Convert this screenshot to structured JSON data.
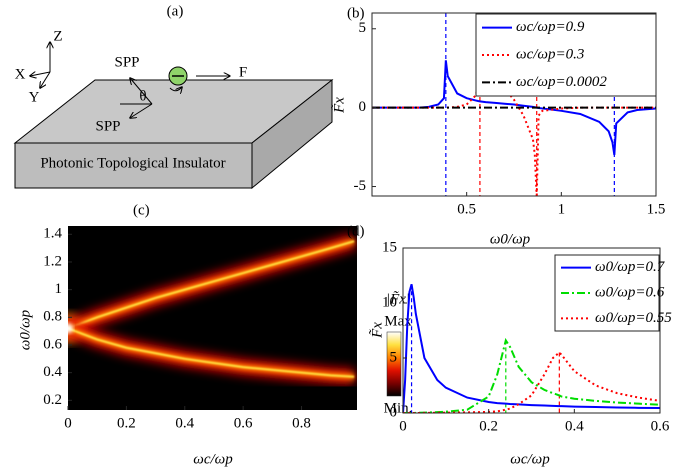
{
  "diagram": {
    "panel_label": "(a)",
    "axis_z": "Z",
    "axis_x": "X",
    "axis_y": "Y",
    "spp_upper": "SPP",
    "spp_lower": "SPP",
    "angle": "θ",
    "force": "F",
    "slab": "Photonic Topological Insulator"
  },
  "chart_data": [
    {
      "type": "line",
      "panel_label": "(b)",
      "xlabel": "ω0/ωp",
      "ylabel": "F̃x",
      "x": [
        0,
        0.2,
        0.25,
        0.3,
        0.35,
        0.38,
        0.39,
        0.4,
        0.45,
        0.5,
        0.55,
        0.56,
        0.57,
        0.6,
        0.65,
        0.7,
        0.75,
        0.8,
        0.85,
        0.86,
        0.87,
        0.88,
        0.9,
        1.0,
        1.1,
        1.2,
        1.25,
        1.27,
        1.28,
        1.29,
        1.35,
        1.4,
        1.5
      ],
      "series": [
        {
          "name": "ωc/ωp=0.9",
          "color": "#0000ff",
          "style": "solid",
          "values": [
            0,
            0,
            0,
            0.05,
            0.2,
            0.6,
            3.0,
            2.0,
            0.9,
            0.6,
            0.45,
            0.42,
            0.4,
            0.35,
            0.3,
            0.25,
            0.2,
            0.12,
            0.05,
            0.03,
            0,
            -0.02,
            -0.05,
            -0.2,
            -0.4,
            -0.9,
            -1.5,
            -2.2,
            -3.0,
            -1.0,
            -0.3,
            -0.15,
            -0.05
          ]
        },
        {
          "name": "ωc/ωp=0.3",
          "color": "#ff0000",
          "style": "dotted",
          "values": [
            0,
            0,
            0,
            0,
            0,
            0,
            0,
            0,
            0.05,
            0.2,
            0.8,
            2.0,
            5.5,
            3.5,
            2.0,
            1.2,
            0.5,
            -0.5,
            -2.0,
            -3.0,
            -5.7,
            -0.5,
            -0.2,
            -0.05,
            0,
            0,
            0,
            0,
            0,
            0,
            0,
            0,
            0
          ]
        },
        {
          "name": "ωc/ωp=0.0002",
          "color": "#000000",
          "style": "dashdot",
          "values": [
            0,
            0,
            0,
            0,
            0,
            0,
            0,
            0,
            0,
            0,
            0,
            0,
            0,
            0,
            0,
            0,
            0,
            0,
            0,
            0,
            0,
            0,
            0,
            0,
            0,
            0,
            0,
            0,
            0,
            0,
            0,
            0,
            0
          ]
        }
      ],
      "markers": [
        {
          "x": 0.39,
          "color": "#0000ff"
        },
        {
          "x": 1.28,
          "color": "#0000ff"
        },
        {
          "x": 0.57,
          "color": "#ff0000"
        },
        {
          "x": 0.87,
          "color": "#ff0000"
        }
      ],
      "xlim": [
        0,
        1.5
      ],
      "xticks": [
        0.5,
        1,
        1.5
      ],
      "ylim": [
        -5.6,
        6
      ],
      "yticks": [
        -5,
        0,
        5
      ],
      "grid": false,
      "legend": "upper right"
    },
    {
      "type": "heatmap",
      "panel_label": "(c)",
      "xlabel": "ωc/ωp",
      "ylabel": "ω0/ωp",
      "colorbar_label": "|F̃x|",
      "colorbar_max": "Max",
      "colorbar_min": "Min.",
      "colormap": [
        "#000000",
        "#7a0000",
        "#e01000",
        "#ff8000",
        "#ffe040",
        "#ffffff"
      ],
      "x": [
        0,
        0.05,
        0.1,
        0.2,
        0.3,
        0.4,
        0.5,
        0.6,
        0.7,
        0.8,
        0.9,
        0.98
      ],
      "ridges": [
        {
          "values": [
            0.72,
            0.76,
            0.8,
            0.87,
            0.94,
            1.0,
            1.06,
            1.12,
            1.18,
            1.24,
            1.3,
            1.35
          ]
        },
        {
          "values": [
            0.72,
            0.68,
            0.64,
            0.58,
            0.54,
            0.5,
            0.47,
            0.44,
            0.42,
            0.4,
            0.38,
            0.37
          ]
        }
      ],
      "xlim": [
        0,
        0.99
      ],
      "xticks": [
        0,
        0.2,
        0.4,
        0.6,
        0.8
      ],
      "ylim": [
        0.13,
        1.46
      ],
      "yticks": [
        0.2,
        0.4,
        0.6,
        0.8,
        1,
        1.2,
        1.4
      ]
    },
    {
      "type": "line",
      "panel_label": "(d)",
      "xlabel": "ωc/ωp",
      "ylabel": "F̃x",
      "x": [
        0,
        0.005,
        0.01,
        0.015,
        0.02,
        0.025,
        0.03,
        0.05,
        0.08,
        0.1,
        0.15,
        0.2,
        0.22,
        0.24,
        0.25,
        0.27,
        0.3,
        0.33,
        0.35,
        0.365,
        0.37,
        0.4,
        0.45,
        0.5,
        0.55,
        0.6
      ],
      "series": [
        {
          "name": "ω0/ωp=0.7",
          "color": "#0000ff",
          "style": "solid",
          "values": [
            0,
            3,
            8,
            11,
            11.7,
            10.5,
            9,
            5,
            3,
            2.3,
            1.4,
            1.0,
            0.9,
            0.85,
            0.82,
            0.78,
            0.72,
            0.68,
            0.65,
            0.63,
            0.62,
            0.58,
            0.54,
            0.5,
            0.47,
            0.45
          ]
        },
        {
          "name": "ω0/ωp=0.6",
          "color": "#00dd00",
          "style": "dashdot",
          "values": [
            0,
            0,
            0,
            0,
            0,
            0,
            0.01,
            0.03,
            0.08,
            0.12,
            0.3,
            1.5,
            3.5,
            6.6,
            6.0,
            4.2,
            2.8,
            2.1,
            1.8,
            1.6,
            1.5,
            1.3,
            1.1,
            0.95,
            0.85,
            0.75
          ]
        },
        {
          "name": "ω0/ωp=0.55",
          "color": "#ff0000",
          "style": "dotted",
          "values": [
            0,
            0,
            0,
            0,
            0,
            0,
            0,
            0.01,
            0.02,
            0.03,
            0.06,
            0.1,
            0.15,
            0.3,
            0.4,
            0.8,
            1.6,
            3.5,
            5.0,
            5.5,
            5.3,
            3.8,
            2.5,
            1.8,
            1.4,
            1.1
          ]
        }
      ],
      "markers": [
        {
          "x": 0.02,
          "y": 11.7,
          "color": "#0000ff"
        },
        {
          "x": 0.24,
          "y": 6.6,
          "color": "#00dd00"
        },
        {
          "x": 0.365,
          "y": 5.5,
          "color": "#ff0000"
        }
      ],
      "xlim": [
        0,
        0.6
      ],
      "xticks": [
        0,
        0.2,
        0.4,
        0.6
      ],
      "ylim": [
        0,
        15
      ],
      "yticks": [
        0,
        5,
        10,
        15
      ],
      "grid": false,
      "legend": "upper right"
    }
  ]
}
